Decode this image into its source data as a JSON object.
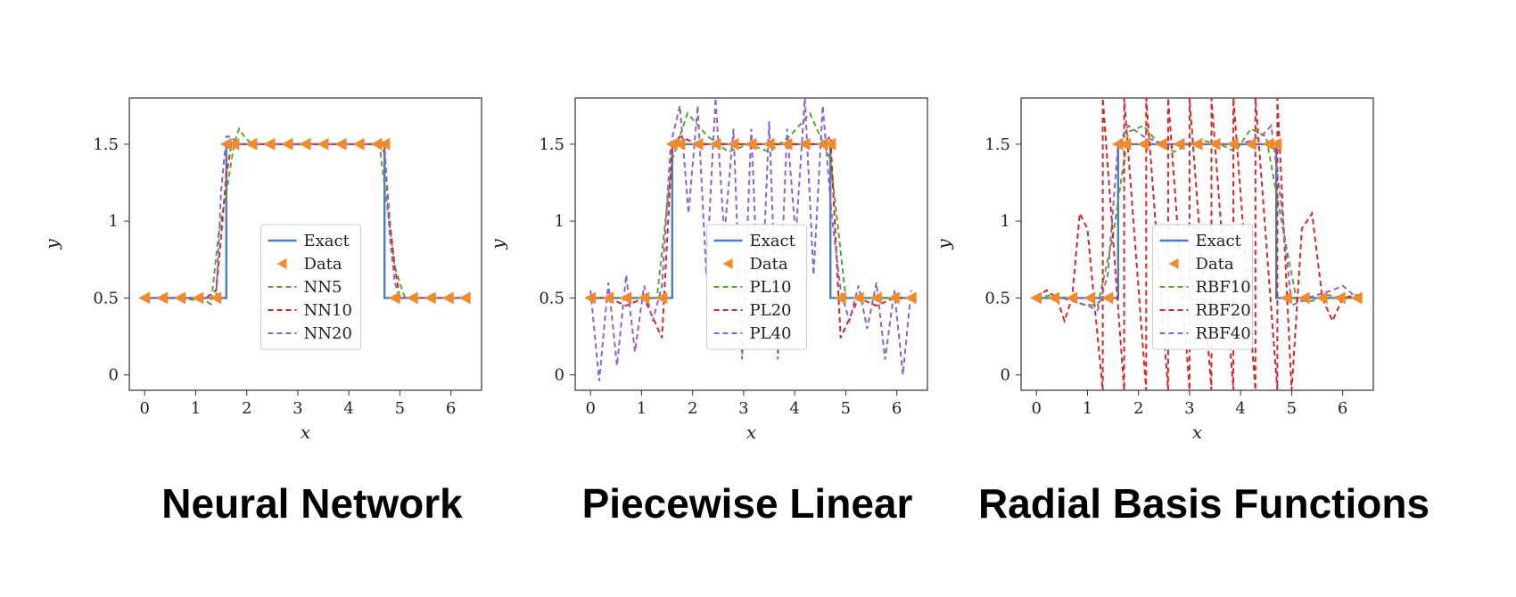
{
  "chart_data": [
    {
      "type": "line",
      "caption": "Neural Network",
      "xlabel": "x",
      "ylabel": "y",
      "xlim": [
        -0.3,
        6.6
      ],
      "ylim": [
        -0.1,
        1.8
      ],
      "xticks": [
        0,
        1,
        2,
        3,
        4,
        5,
        6
      ],
      "yticks": [
        0,
        0.5,
        1,
        1.5
      ],
      "ytick_labels": [
        "0",
        "0.5",
        "1",
        "1.5"
      ],
      "grid": false,
      "legend_position": "center",
      "exact": {
        "name": "Exact",
        "x": [
          0,
          1.6,
          1.6,
          4.7,
          4.7,
          6.28
        ],
        "y": [
          0.5,
          0.5,
          1.5,
          1.5,
          0.5,
          0.5
        ]
      },
      "data_points": {
        "name": "Data",
        "x": [
          0,
          0.35,
          0.7,
          1.05,
          1.4,
          1.6,
          1.75,
          2.1,
          2.45,
          2.8,
          3.15,
          3.5,
          3.85,
          4.2,
          4.55,
          4.7,
          4.9,
          5.25,
          5.6,
          5.95,
          6.28
        ],
        "y": [
          0.5,
          0.5,
          0.5,
          0.5,
          0.5,
          1.5,
          1.5,
          1.5,
          1.5,
          1.5,
          1.5,
          1.5,
          1.5,
          1.5,
          1.5,
          1.5,
          0.5,
          0.5,
          0.5,
          0.5,
          0.5
        ]
      },
      "series": [
        {
          "name": "NN5",
          "color": "#55a630",
          "x": [
            0,
            0.6,
            1.2,
            1.3,
            1.45,
            1.6,
            1.75,
            1.85,
            1.95,
            2.1,
            2.5,
            3.0,
            3.5,
            4.0,
            4.4,
            4.6,
            4.75,
            4.9,
            5.1,
            5.5,
            6.0,
            6.28
          ],
          "y": [
            0.5,
            0.5,
            0.48,
            0.46,
            0.92,
            1.18,
            1.5,
            1.6,
            1.55,
            1.5,
            1.5,
            1.5,
            1.5,
            1.5,
            1.5,
            1.5,
            1.1,
            0.7,
            0.5,
            0.5,
            0.5,
            0.5
          ]
        },
        {
          "name": "NN10",
          "color": "#d62728",
          "x": [
            0,
            1.2,
            1.4,
            1.5,
            1.6,
            1.7,
            1.8,
            2.2,
            3.0,
            4.0,
            4.5,
            4.7,
            4.8,
            4.9,
            5.0,
            5.5,
            6.28
          ],
          "y": [
            0.5,
            0.5,
            0.55,
            0.9,
            1.3,
            1.5,
            1.5,
            1.5,
            1.5,
            1.5,
            1.5,
            1.45,
            1.0,
            0.7,
            0.5,
            0.5,
            0.5
          ]
        },
        {
          "name": "NN20",
          "color": "#8e63ce",
          "x": [
            0,
            1.2,
            1.4,
            1.5,
            1.6,
            1.7,
            1.8,
            2.2,
            3.0,
            4.0,
            4.5,
            4.7,
            4.8,
            4.9,
            5.0,
            5.5,
            6.28
          ],
          "y": [
            0.5,
            0.5,
            0.5,
            1.2,
            1.55,
            1.55,
            1.5,
            1.5,
            1.5,
            1.5,
            1.5,
            1.5,
            0.9,
            0.6,
            0.5,
            0.5,
            0.5
          ]
        }
      ]
    },
    {
      "type": "line",
      "caption": "Piecewise Linear",
      "xlabel": "x",
      "ylabel": "y",
      "xlim": [
        -0.3,
        6.6
      ],
      "ylim": [
        -0.1,
        1.8
      ],
      "xticks": [
        0,
        1,
        2,
        3,
        4,
        5,
        6
      ],
      "yticks": [
        0,
        0.5,
        1,
        1.5
      ],
      "ytick_labels": [
        "0",
        "0.5",
        "1",
        "1.5"
      ],
      "grid": false,
      "legend_position": "center",
      "exact": {
        "name": "Exact",
        "x": [
          0,
          1.6,
          1.6,
          4.7,
          4.7,
          6.28
        ],
        "y": [
          0.5,
          0.5,
          1.5,
          1.5,
          0.5,
          0.5
        ]
      },
      "data_points": {
        "name": "Data",
        "x": [
          0,
          0.35,
          0.7,
          1.05,
          1.4,
          1.6,
          1.75,
          2.1,
          2.45,
          2.8,
          3.15,
          3.5,
          3.85,
          4.2,
          4.55,
          4.7,
          4.9,
          5.25,
          5.6,
          5.95,
          6.28
        ],
        "y": [
          0.5,
          0.5,
          0.5,
          0.5,
          0.5,
          1.5,
          1.5,
          1.5,
          1.5,
          1.5,
          1.5,
          1.5,
          1.5,
          1.5,
          1.5,
          1.5,
          0.5,
          0.5,
          0.5,
          0.5,
          0.5
        ]
      },
      "series": [
        {
          "name": "PL10",
          "color": "#55a630",
          "x": [
            0,
            0.7,
            1.3,
            1.6,
            1.9,
            2.3,
            2.7,
            3.1,
            3.5,
            3.9,
            4.3,
            4.7,
            5.0,
            5.4,
            5.9,
            6.28
          ],
          "y": [
            0.5,
            0.5,
            0.5,
            1.4,
            1.7,
            1.55,
            1.45,
            1.5,
            1.45,
            1.55,
            1.7,
            1.4,
            0.5,
            0.5,
            0.5,
            0.5
          ]
        },
        {
          "name": "PL20",
          "color": "#d62728",
          "x": [
            0,
            0.35,
            0.7,
            1.05,
            1.4,
            1.6,
            1.75,
            2.1,
            2.45,
            2.8,
            3.15,
            3.5,
            3.85,
            4.2,
            4.55,
            4.7,
            4.9,
            5.25,
            5.6,
            5.95,
            6.28
          ],
          "y": [
            0.5,
            0.5,
            0.45,
            0.5,
            0.24,
            1.5,
            1.55,
            1.5,
            1.5,
            1.5,
            1.5,
            1.5,
            1.5,
            1.5,
            1.5,
            1.55,
            0.24,
            0.5,
            0.45,
            0.5,
            0.5
          ]
        },
        {
          "name": "PL40",
          "color": "#8e63ce",
          "x": [
            0,
            0.17,
            0.35,
            0.52,
            0.7,
            0.87,
            1.05,
            1.22,
            1.4,
            1.57,
            1.75,
            1.92,
            2.1,
            2.27,
            2.45,
            2.62,
            2.8,
            2.97,
            3.15,
            3.32,
            3.5,
            3.67,
            3.85,
            4.02,
            4.2,
            4.37,
            4.55,
            4.72,
            4.9,
            5.07,
            5.25,
            5.42,
            5.6,
            5.77,
            5.95,
            6.12,
            6.28
          ],
          "y": [
            0.55,
            -0.04,
            0.6,
            0.06,
            0.65,
            0.15,
            0.58,
            0.35,
            0.58,
            1.5,
            1.75,
            1.05,
            1.75,
            0.65,
            1.8,
            0.9,
            1.6,
            0.1,
            1.6,
            0.2,
            1.65,
            0.1,
            1.6,
            0.9,
            1.8,
            0.65,
            1.75,
            1.05,
            0.55,
            0.35,
            0.58,
            0.3,
            0.6,
            0.1,
            0.55,
            0.0,
            0.55
          ]
        }
      ]
    },
    {
      "type": "line",
      "caption": "Radial Basis Functions",
      "xlabel": "x",
      "ylabel": "y",
      "xlim": [
        -0.3,
        6.6
      ],
      "ylim": [
        -0.1,
        1.8
      ],
      "xticks": [
        0,
        1,
        2,
        3,
        4,
        5,
        6
      ],
      "yticks": [
        0,
        0.5,
        1,
        1.5
      ],
      "ytick_labels": [
        "0",
        "0.5",
        "1",
        "1.5"
      ],
      "grid": false,
      "legend_position": "center",
      "exact": {
        "name": "Exact",
        "x": [
          0,
          1.6,
          1.6,
          4.7,
          4.7,
          6.28
        ],
        "y": [
          0.5,
          0.5,
          1.5,
          1.5,
          0.5,
          0.5
        ]
      },
      "data_points": {
        "name": "Data",
        "x": [
          0,
          0.35,
          0.7,
          1.05,
          1.4,
          1.6,
          1.75,
          2.1,
          2.45,
          2.8,
          3.15,
          3.5,
          3.85,
          4.2,
          4.55,
          4.7,
          4.9,
          5.25,
          5.6,
          5.95,
          6.28
        ],
        "y": [
          0.5,
          0.5,
          0.5,
          0.5,
          0.5,
          1.5,
          1.5,
          1.5,
          1.5,
          1.5,
          1.5,
          1.5,
          1.5,
          1.5,
          1.5,
          1.5,
          0.5,
          0.5,
          0.5,
          0.5,
          0.5
        ]
      },
      "series": [
        {
          "name": "RBF10",
          "color": "#55a630",
          "x": [
            0,
            0.3,
            0.6,
            0.9,
            1.2,
            1.5,
            1.8,
            2.1,
            2.4,
            2.7,
            3.0,
            3.3,
            3.6,
            3.9,
            4.2,
            4.5,
            4.8,
            5.1,
            5.4,
            5.7,
            6.0,
            6.28
          ],
          "y": [
            0.5,
            0.52,
            0.5,
            0.46,
            0.45,
            0.9,
            1.58,
            1.62,
            1.5,
            1.45,
            1.5,
            1.52,
            1.5,
            1.45,
            1.6,
            1.55,
            1.0,
            0.48,
            0.48,
            0.52,
            0.5,
            0.5
          ]
        },
        {
          "name": "RBF20",
          "color": "#d62728",
          "x": [
            0,
            0.2,
            0.4,
            0.55,
            0.7,
            0.85,
            1.0,
            1.15,
            1.3,
            1.3,
            1.72,
            1.72,
            2.15,
            2.15,
            2.58,
            2.58,
            3.0,
            3.0,
            3.43,
            3.43,
            3.86,
            3.86,
            4.29,
            4.29,
            4.72,
            4.72,
            5.0,
            5.2,
            5.4,
            5.6,
            5.8,
            6.0,
            6.28
          ],
          "y": [
            0.5,
            0.55,
            0.5,
            0.35,
            0.5,
            1.05,
            0.95,
            0.42,
            -0.1,
            1.8,
            -0.1,
            1.8,
            -0.1,
            1.8,
            -0.1,
            1.8,
            -0.1,
            1.8,
            -0.1,
            1.8,
            -0.1,
            1.8,
            -0.1,
            1.8,
            -0.1,
            1.8,
            -0.1,
            0.95,
            1.05,
            0.5,
            0.35,
            0.5,
            0.52
          ]
        },
        {
          "name": "RBF40",
          "color": "#8e63ce",
          "x": [
            0,
            0.5,
            1.0,
            1.2,
            1.4,
            1.6,
            1.8,
            2.1,
            2.5,
            3.0,
            3.5,
            4.0,
            4.4,
            4.6,
            4.8,
            5.0,
            5.3,
            5.8,
            6.0,
            6.28
          ],
          "y": [
            0.5,
            0.5,
            0.45,
            0.42,
            0.65,
            1.5,
            1.62,
            1.55,
            1.5,
            1.5,
            1.5,
            1.5,
            1.55,
            1.62,
            1.1,
            0.45,
            0.5,
            0.55,
            0.58,
            0.5
          ]
        }
      ]
    }
  ],
  "legend_labels": {
    "exact": "Exact",
    "data": "Data"
  },
  "colors": {
    "exact": "#4a7fc1",
    "data": "#f08a2c"
  }
}
